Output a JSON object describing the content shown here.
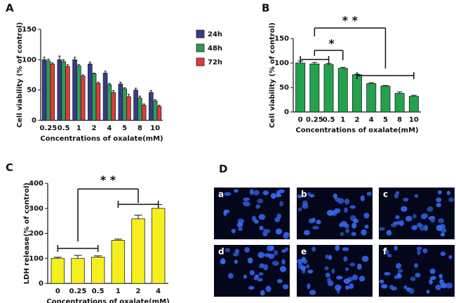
{
  "chart_data": [
    {
      "type": "bar",
      "panel_label": "A",
      "y_label": "Cell viability (% of control)",
      "x_label": "Concentrations of oxalate(mM)",
      "categories": [
        "0.25",
        "0.5",
        "1",
        "2",
        "4",
        "5",
        "8",
        "10"
      ],
      "series": [
        {
          "name": "24h",
          "color": "#343c8c",
          "values": [
            100,
            100,
            100,
            93,
            78,
            60,
            50,
            46
          ],
          "errors": [
            4,
            6,
            4,
            3,
            3,
            3,
            3,
            3
          ]
        },
        {
          "name": "48h",
          "color": "#2e9c58",
          "values": [
            98,
            97,
            90,
            77,
            59,
            52,
            37,
            32
          ],
          "errors": [
            3,
            3,
            2,
            1,
            2,
            2,
            3,
            2
          ]
        },
        {
          "name": "72h",
          "color": "#e03a3a",
          "values": [
            93,
            89,
            73,
            61,
            46,
            39,
            25,
            23
          ],
          "errors": [
            2,
            3,
            2,
            2,
            3,
            4,
            2,
            2
          ]
        }
      ],
      "ylim": [
        0,
        150
      ],
      "yticks": [
        0,
        50,
        100,
        150
      ],
      "legend": "right"
    },
    {
      "type": "bar",
      "panel_label": "B",
      "y_label": "Cell viability (% of control)",
      "x_label": "Concentrations of oxalate(mM)",
      "categories": [
        "0",
        "0.25",
        "0.5",
        "1",
        "2",
        "4",
        "5",
        "8",
        "10"
      ],
      "values": [
        100,
        98,
        97,
        89,
        76,
        58,
        53,
        38,
        32
      ],
      "errors": [
        4,
        3,
        2,
        2,
        1,
        2,
        1,
        3,
        2
      ],
      "color": "#23a24d",
      "ylim": [
        0,
        150
      ],
      "yticks": [
        0,
        50,
        100,
        150
      ],
      "annotations": [
        "* *",
        "*"
      ]
    },
    {
      "type": "bar",
      "panel_label": "C",
      "y_label": "LDH release(% of control)",
      "x_label": "Concentrations of oxalate(mM)",
      "categories": [
        "0",
        "0.25",
        "0.5",
        "1",
        "2",
        "4"
      ],
      "values": [
        100,
        100,
        105,
        172,
        258,
        300
      ],
      "errors": [
        5,
        12,
        5,
        5,
        15,
        15
      ],
      "color": "#f5ef1e",
      "ylim": [
        0,
        400
      ],
      "yticks": [
        0,
        100,
        200,
        300,
        400
      ],
      "annotations": [
        "* *"
      ]
    }
  ],
  "image_panel": {
    "panel_label": "D",
    "tiles": [
      "a",
      "b",
      "c",
      "d",
      "e",
      "f"
    ]
  }
}
